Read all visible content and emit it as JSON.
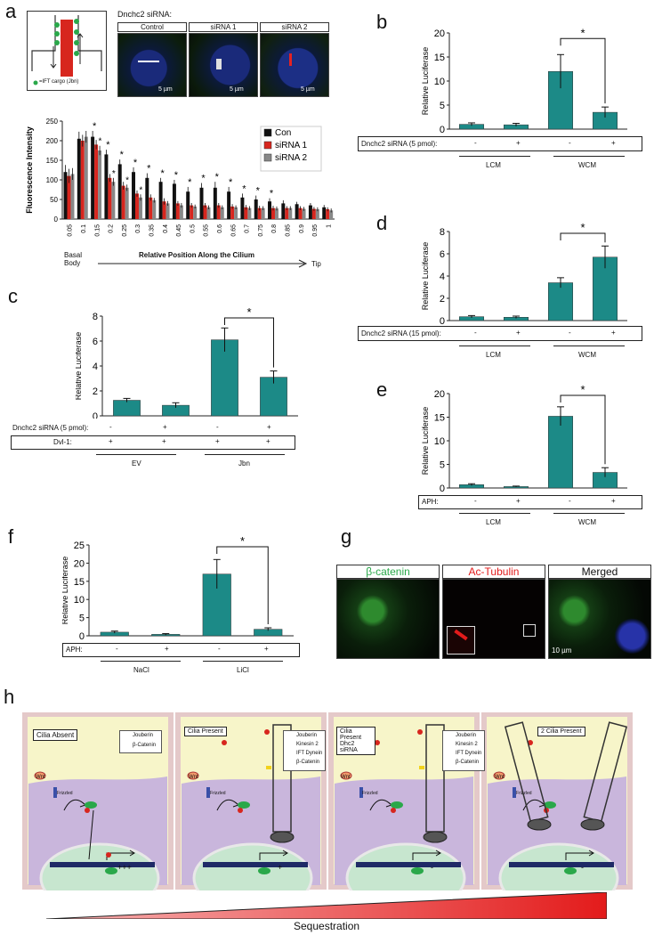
{
  "panels": {
    "a": {
      "label": "a",
      "legend_cargo": "=IFT cargo (Jbn)",
      "title": "Dnchc2 siRNA:",
      "images": [
        "Control",
        "siRNA 1",
        "siRNA 2"
      ],
      "scalebar": "5 µm"
    },
    "b": {
      "label": "b",
      "ylabel": "Relative Luciferase",
      "row_label": "Dnchc2 siRNA (5 pmol):",
      "group1": "LCM",
      "group2": "WCM"
    },
    "c": {
      "label": "c",
      "ylabel": "Relative Luciferase",
      "row1_label": "Dnchc2 siRNA (5 pmol):",
      "row2_label": "Dvl-1:",
      "group1": "EV",
      "group2": "Jbn"
    },
    "d": {
      "label": "d",
      "ylabel": "Relative Luciferase",
      "row_label": "Dnchc2 siRNA (15 pmol):",
      "group1": "LCM",
      "group2": "WCM"
    },
    "e": {
      "label": "e",
      "ylabel": "Relative Luciferase",
      "row_label": "APH:",
      "group1": "LCM",
      "group2": "WCM"
    },
    "f": {
      "label": "f",
      "ylabel": "Relative Luciferase",
      "row_label": "APH:",
      "group1": "NaCl",
      "group2": "LiCl"
    },
    "g": {
      "label": "g",
      "images": [
        "β-catenin",
        "Ac-Tubulin",
        "Merged"
      ],
      "scalebar": "10 µm"
    },
    "h": {
      "label": "h",
      "cells": [
        {
          "title": "Cilia Absent",
          "legend": [
            "Jouberin",
            "β-Catenin"
          ],
          "transcription": "+++"
        },
        {
          "title": "Cilia Present",
          "legend": [
            "Jouberin",
            "Kinesin 2",
            "IFT Dynein",
            "β-Catenin"
          ],
          "transcription": "+"
        },
        {
          "title": "Cilia Present Dhc2 siRNA",
          "legend": [
            "Jouberin",
            "Kinesin 2",
            "IFT Dynein",
            "β-Catenin"
          ],
          "transcription": "-"
        },
        {
          "title": "2 Cilia Present",
          "legend": [],
          "transcription": "-"
        }
      ],
      "wnt": "Wnt",
      "frizzled": "Frizzled",
      "sequestration": "Sequestration"
    }
  },
  "chart_data": [
    {
      "panel": "a",
      "type": "bar",
      "ylabel": "Fluorescence Intensity",
      "xlabel": "Relative Position Along the Cilium",
      "x_left": "Basal Body",
      "x_right": "Tip",
      "ylim": [
        0,
        250
      ],
      "yticks": [
        0,
        50,
        100,
        150,
        200,
        250
      ],
      "categories": [
        "0.05",
        "0.1",
        "0.15",
        "0.2",
        "0.25",
        "0.3",
        "0.35",
        "0.4",
        "0.45",
        "0.5",
        "0.55",
        "0.6",
        "0.65",
        "0.7",
        "0.75",
        "0.8",
        "0.85",
        "0.9",
        "0.95",
        "1"
      ],
      "series": [
        {
          "name": "Con",
          "color": "#111111",
          "values": [
            120,
            205,
            210,
            165,
            140,
            120,
            105,
            95,
            90,
            70,
            80,
            80,
            70,
            55,
            50,
            45,
            40,
            38,
            35,
            30
          ],
          "errors": [
            18,
            18,
            15,
            12,
            12,
            12,
            12,
            10,
            10,
            12,
            12,
            15,
            12,
            10,
            10,
            8,
            8,
            6,
            6,
            6
          ]
        },
        {
          "name": "siRNA 1",
          "color": "#d7261e",
          "values": [
            110,
            200,
            190,
            105,
            85,
            65,
            55,
            45,
            40,
            35,
            35,
            35,
            32,
            30,
            28,
            28,
            28,
            28,
            26,
            25
          ],
          "errors": [
            18,
            15,
            12,
            10,
            10,
            8,
            8,
            8,
            6,
            6,
            6,
            6,
            6,
            6,
            6,
            6,
            5,
            5,
            5,
            5
          ]
        },
        {
          "name": "siRNA 2",
          "color": "#888888",
          "values": [
            115,
            210,
            175,
            95,
            80,
            55,
            48,
            40,
            35,
            32,
            30,
            30,
            30,
            28,
            28,
            27,
            28,
            26,
            25,
            22
          ],
          "errors": [
            15,
            15,
            12,
            10,
            8,
            8,
            6,
            6,
            6,
            5,
            5,
            5,
            5,
            5,
            5,
            5,
            5,
            5,
            5,
            5
          ]
        }
      ],
      "stars": [
        0,
        0,
        1,
        1,
        1,
        1,
        1,
        1,
        1,
        1,
        1,
        1,
        1,
        1,
        1,
        1,
        0,
        0,
        0,
        0
      ],
      "stars2": [
        0,
        0,
        1,
        1,
        1,
        1,
        0,
        0,
        0,
        0,
        0,
        0,
        0,
        0,
        0,
        0,
        0,
        0,
        0,
        0
      ],
      "star_symbol": "*"
    },
    {
      "panel": "b",
      "type": "bar",
      "ylabel": "Relative Luciferase",
      "ylim": [
        0,
        20
      ],
      "yticks": [
        0,
        5,
        10,
        15,
        20
      ],
      "values": [
        1.0,
        0.9,
        12.0,
        3.5
      ],
      "errors": [
        0.3,
        0.3,
        3.5,
        1.1
      ],
      "signs": [
        "-",
        "+",
        "-",
        "+"
      ],
      "sig": "*"
    },
    {
      "panel": "c",
      "type": "bar",
      "ylabel": "Relative Luciferase",
      "ylim": [
        0,
        8
      ],
      "yticks": [
        0,
        2,
        4,
        6,
        8
      ],
      "values": [
        1.25,
        0.85,
        6.1,
        3.1
      ],
      "errors": [
        0.15,
        0.2,
        0.95,
        0.5
      ],
      "signs": [
        "-",
        "+",
        "-",
        "+"
      ],
      "signs2": [
        "+",
        "+",
        "+",
        "+"
      ],
      "sig": "*"
    },
    {
      "panel": "d",
      "type": "bar",
      "ylabel": "Relative Luciferase",
      "ylim": [
        0,
        8
      ],
      "yticks": [
        0,
        2,
        4,
        6,
        8
      ],
      "values": [
        0.35,
        0.3,
        3.4,
        5.7
      ],
      "errors": [
        0.1,
        0.1,
        0.45,
        1.0
      ],
      "signs": [
        "-",
        "+",
        "-",
        "+"
      ],
      "sig": "*"
    },
    {
      "panel": "e",
      "type": "bar",
      "ylabel": "Relative Luciferase",
      "ylim": [
        0,
        20
      ],
      "yticks": [
        0,
        5,
        10,
        15,
        20
      ],
      "values": [
        0.7,
        0.3,
        15.2,
        3.3
      ],
      "errors": [
        0.2,
        0.1,
        2.0,
        1.0
      ],
      "signs": [
        "-",
        "+",
        "-",
        "+"
      ],
      "sig": "*"
    },
    {
      "panel": "f",
      "type": "bar",
      "ylabel": "Relative Luciferase",
      "ylim": [
        0,
        25
      ],
      "yticks": [
        0,
        5,
        10,
        15,
        20,
        25
      ],
      "values": [
        1.0,
        0.4,
        17.0,
        1.8
      ],
      "errors": [
        0.3,
        0.2,
        4.0,
        0.4
      ],
      "signs": [
        "-",
        "+",
        "-",
        "+"
      ],
      "sig": "*"
    }
  ],
  "colors": {
    "bar": "#1c8a87",
    "con": "#111111",
    "sirna1": "#d7261e",
    "sirna2": "#888888",
    "cell_bg": "#f7f5c9",
    "cyto": "#c9b6dc",
    "nucleus": "#c7e6cf",
    "red": "#e31b1b"
  }
}
